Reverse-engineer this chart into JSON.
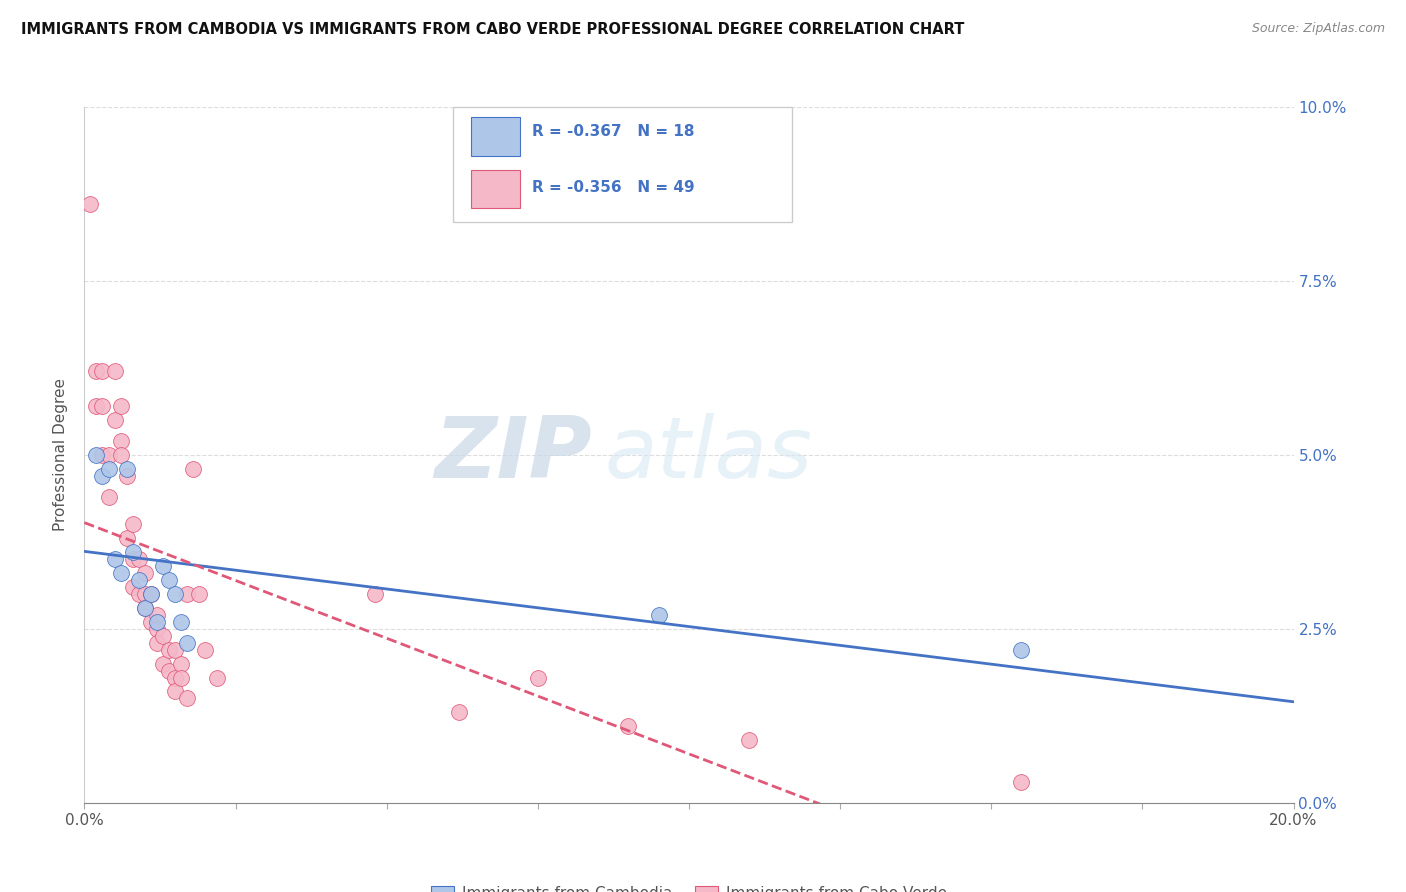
{
  "title": "IMMIGRANTS FROM CAMBODIA VS IMMIGRANTS FROM CABO VERDE PROFESSIONAL DEGREE CORRELATION CHART",
  "source": "Source: ZipAtlas.com",
  "ylabel": "Professional Degree",
  "xlim": [
    0.0,
    0.2
  ],
  "ylim": [
    0.0,
    0.1
  ],
  "yticks": [
    0.0,
    0.025,
    0.05,
    0.075,
    0.1
  ],
  "ytick_labels_right": [
    "0.0%",
    "2.5%",
    "5.0%",
    "7.5%",
    "10.0%"
  ],
  "xticks": [
    0.0,
    0.025,
    0.05,
    0.075,
    0.1,
    0.125,
    0.15,
    0.175,
    0.2
  ],
  "legend_r1": "R = -0.367",
  "legend_n1": "N = 18",
  "legend_r2": "R = -0.356",
  "legend_n2": "N = 49",
  "series1_color": "#aec6e8",
  "series2_color": "#f4b8c8",
  "line1_color": "#4472c4",
  "line2_color": "#e05878",
  "watermark_zip": "ZIP",
  "watermark_atlas": "atlas",
  "cambodia_label": "Immigrants from Cambodia",
  "caboverde_label": "Immigrants from Cabo Verde",
  "cambodia_x": [
    0.002,
    0.003,
    0.004,
    0.005,
    0.006,
    0.007,
    0.008,
    0.009,
    0.01,
    0.011,
    0.012,
    0.013,
    0.014,
    0.015,
    0.016,
    0.017,
    0.095,
    0.155
  ],
  "cambodia_y": [
    0.05,
    0.047,
    0.048,
    0.035,
    0.033,
    0.048,
    0.036,
    0.032,
    0.028,
    0.03,
    0.026,
    0.034,
    0.032,
    0.03,
    0.026,
    0.023,
    0.027,
    0.022
  ],
  "caboverde_x": [
    0.001,
    0.002,
    0.002,
    0.003,
    0.003,
    0.003,
    0.004,
    0.004,
    0.005,
    0.005,
    0.006,
    0.006,
    0.006,
    0.007,
    0.007,
    0.008,
    0.008,
    0.008,
    0.009,
    0.009,
    0.01,
    0.01,
    0.01,
    0.011,
    0.011,
    0.012,
    0.012,
    0.012,
    0.013,
    0.013,
    0.014,
    0.014,
    0.015,
    0.015,
    0.015,
    0.016,
    0.016,
    0.017,
    0.017,
    0.018,
    0.019,
    0.02,
    0.022,
    0.048,
    0.062,
    0.075,
    0.09,
    0.11,
    0.155
  ],
  "caboverde_y": [
    0.086,
    0.062,
    0.057,
    0.062,
    0.057,
    0.05,
    0.05,
    0.044,
    0.062,
    0.055,
    0.057,
    0.052,
    0.05,
    0.047,
    0.038,
    0.04,
    0.035,
    0.031,
    0.035,
    0.03,
    0.033,
    0.03,
    0.028,
    0.03,
    0.026,
    0.027,
    0.025,
    0.023,
    0.024,
    0.02,
    0.022,
    0.019,
    0.022,
    0.018,
    0.016,
    0.02,
    0.018,
    0.015,
    0.03,
    0.048,
    0.03,
    0.022,
    0.018,
    0.03,
    0.013,
    0.018,
    0.011,
    0.009,
    0.003
  ]
}
